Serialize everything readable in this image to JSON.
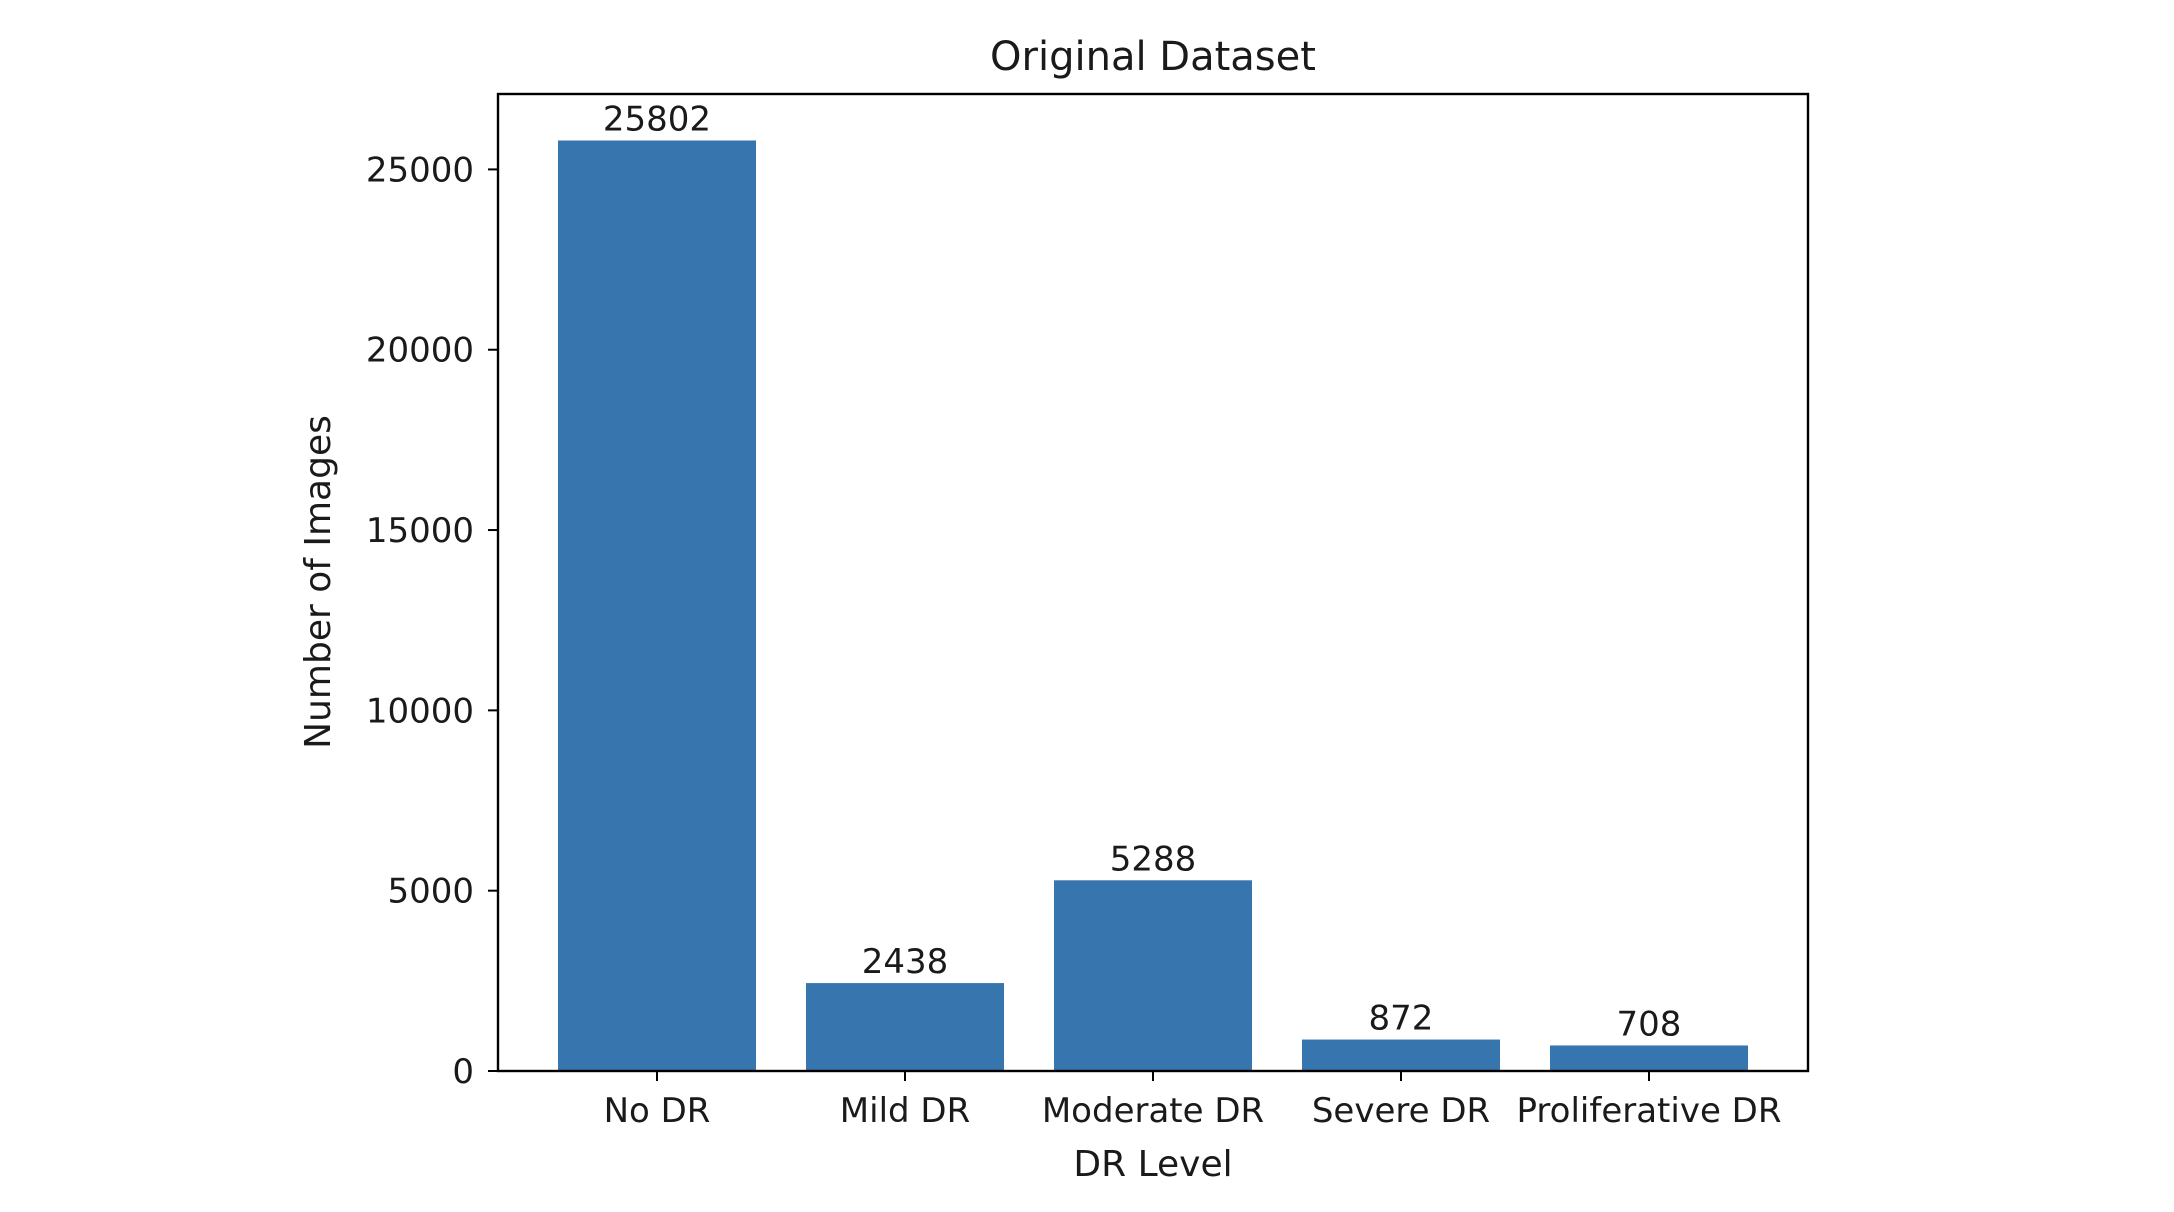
{
  "chart_data": {
    "type": "bar",
    "title": "Original Dataset",
    "xlabel": "DR Level",
    "ylabel": "Number of Images",
    "categories": [
      "No DR",
      "Mild DR",
      "Moderate DR",
      "Severe DR",
      "Proliferative DR"
    ],
    "values": [
      25802,
      2438,
      5288,
      872,
      708
    ],
    "data_labels": [
      "25802",
      "2438",
      "5288",
      "872",
      "708"
    ],
    "ylim": [
      0,
      27091
    ],
    "yticks": [
      0,
      5000,
      10000,
      15000,
      20000,
      25000
    ],
    "ytick_labels": [
      "0",
      "5000",
      "10000",
      "15000",
      "20000",
      "25000"
    ],
    "bar_color": "#3775ae",
    "grid": false,
    "legend": "none"
  }
}
